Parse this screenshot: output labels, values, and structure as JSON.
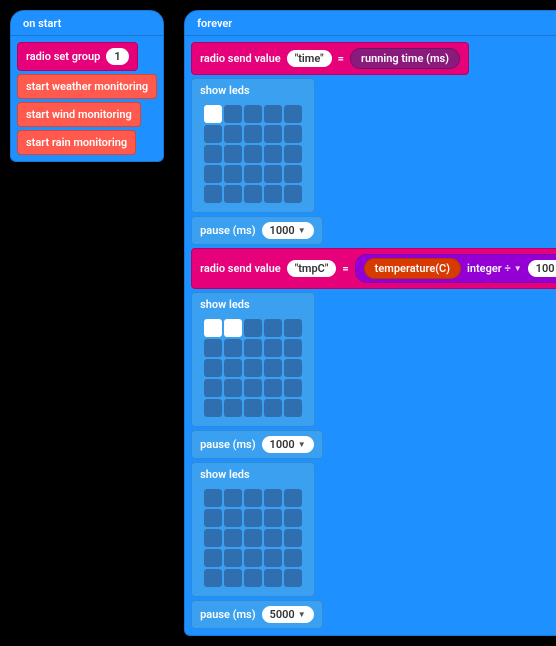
{
  "colors": {
    "loops_bg": "#1e90ff",
    "loops_border": "#1976d2",
    "radio_bg": "#e6007a",
    "radio_border": "#b80062",
    "weather_bg": "#ff5a4d",
    "weather_border": "#d84436",
    "basic_bg": "#3aa0ef",
    "basic_border": "#2e8bd6",
    "input_bg": "#8a1b7c",
    "input_border": "#6d1562",
    "temp_bg": "#d83b01",
    "temp_border": "#b83301",
    "math_bg": "#9400d3",
    "math_border": "#7a00b0",
    "led_off": "#2f6fb0",
    "led_on": "#ffffff",
    "pill_bg": "#ffffff",
    "pill_fg": "#333333"
  },
  "onstart": {
    "hat": "on start",
    "radio_set_group": {
      "label": "radio set group",
      "value": "1"
    },
    "start_weather": "start weather monitoring",
    "start_wind": "start wind monitoring",
    "start_rain": "start rain monitoring"
  },
  "forever": {
    "hat": "forever",
    "send1": {
      "label": "radio send value",
      "name": "\"time\"",
      "eq": "=",
      "reporter": "running time (ms)"
    },
    "showleds_label": "show leds",
    "leds1": [
      [
        1,
        0,
        0,
        0,
        0
      ],
      [
        0,
        0,
        0,
        0,
        0
      ],
      [
        0,
        0,
        0,
        0,
        0
      ],
      [
        0,
        0,
        0,
        0,
        0
      ],
      [
        0,
        0,
        0,
        0,
        0
      ]
    ],
    "pause_label": "pause (ms)",
    "pause1": "1000",
    "send2": {
      "label": "radio send value",
      "name": "\"tmpC\"",
      "eq": "=",
      "temp_label": "temperature(C)",
      "op": "integer ÷",
      "divisor": "100"
    },
    "leds2": [
      [
        1,
        1,
        0,
        0,
        0
      ],
      [
        0,
        0,
        0,
        0,
        0
      ],
      [
        0,
        0,
        0,
        0,
        0
      ],
      [
        0,
        0,
        0,
        0,
        0
      ],
      [
        0,
        0,
        0,
        0,
        0
      ]
    ],
    "pause2": "1000",
    "leds3": [
      [
        0,
        0,
        0,
        0,
        0
      ],
      [
        0,
        0,
        0,
        0,
        0
      ],
      [
        0,
        0,
        0,
        0,
        0
      ],
      [
        0,
        0,
        0,
        0,
        0
      ],
      [
        0,
        0,
        0,
        0,
        0
      ]
    ],
    "pause3": "5000"
  }
}
